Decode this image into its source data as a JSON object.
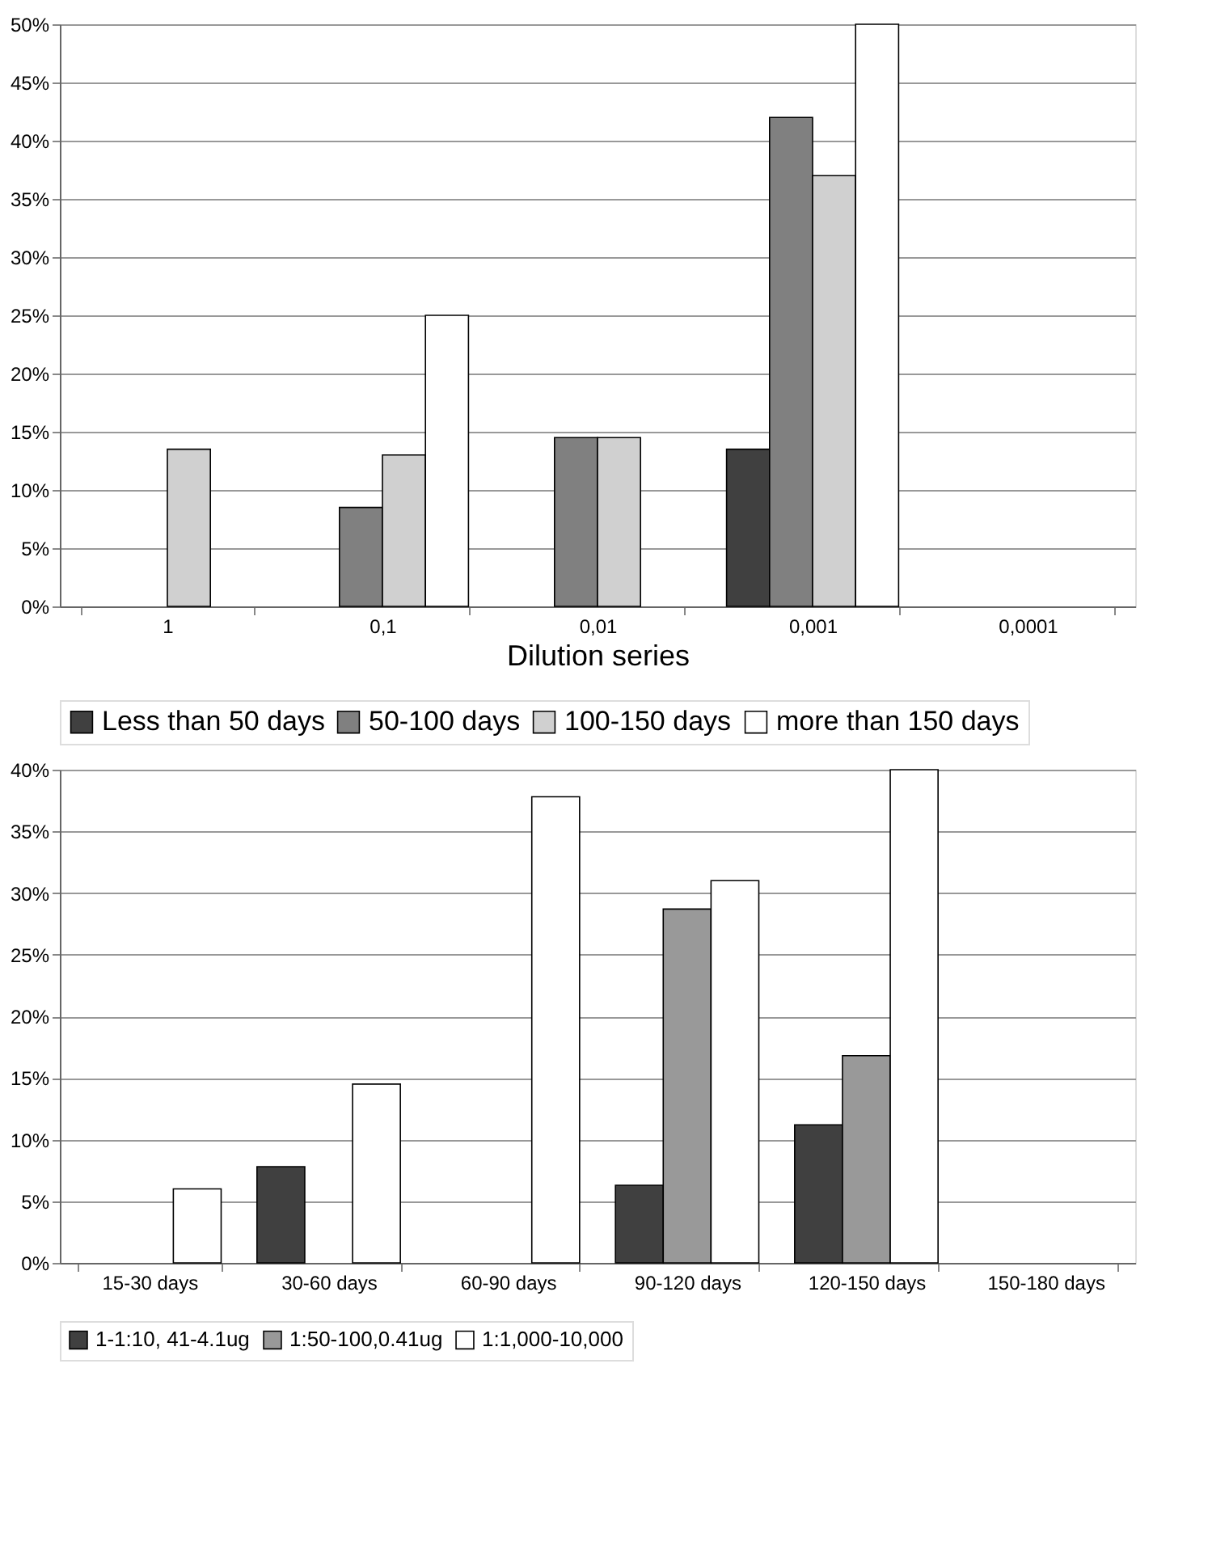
{
  "chart_data": [
    {
      "type": "bar",
      "xlabel": "Dilution series",
      "categories": [
        "1",
        "0,1",
        "0,01",
        "0,001",
        "0,0001"
      ],
      "ylim": [
        0,
        50
      ],
      "yticks": [
        {
          "value": 0,
          "label": "0%"
        },
        {
          "value": 5,
          "label": "5%"
        },
        {
          "value": 10,
          "label": "10%"
        },
        {
          "value": 15,
          "label": "15%"
        },
        {
          "value": 20,
          "label": "20%"
        },
        {
          "value": 25,
          "label": "25%"
        },
        {
          "value": 30,
          "label": "30%"
        },
        {
          "value": 35,
          "label": "35%"
        },
        {
          "value": 40,
          "label": "40%"
        },
        {
          "value": 45,
          "label": "45%"
        },
        {
          "value": 50,
          "label": "50%"
        }
      ],
      "grid": "y",
      "legend": "bottom",
      "series": [
        {
          "name": "Less than 50 days",
          "color": "#404040",
          "values": [
            0,
            0,
            0,
            13.5,
            0
          ]
        },
        {
          "name": "50-100 days",
          "color": "#808080",
          "values": [
            0,
            8.5,
            14.5,
            42,
            0
          ]
        },
        {
          "name": "100-150 days",
          "color": "#d0d0d0",
          "values": [
            13.5,
            13,
            14.5,
            37,
            0
          ]
        },
        {
          "name": "more than 150 days",
          "color": "#ffffff",
          "values": [
            0,
            25,
            0,
            50,
            0
          ]
        }
      ]
    },
    {
      "type": "bar",
      "categories": [
        "15-30 days",
        "30-60 days",
        "60-90 days",
        "90-120 days",
        "120-150  days",
        "150-180 days"
      ],
      "ylim": [
        0,
        40
      ],
      "yticks": [
        {
          "value": 0,
          "label": "0%"
        },
        {
          "value": 5,
          "label": "5%"
        },
        {
          "value": 10,
          "label": "10%"
        },
        {
          "value": 15,
          "label": "15%"
        },
        {
          "value": 20,
          "label": "20%"
        },
        {
          "value": 25,
          "label": "25%"
        },
        {
          "value": 30,
          "label": "30%"
        },
        {
          "value": 35,
          "label": "35%"
        },
        {
          "value": 40,
          "label": "40%"
        }
      ],
      "grid": "y",
      "legend": "bottom",
      "series": [
        {
          "name": "1-1:10, 41-4.1ug",
          "color": "#404040",
          "values": [
            0,
            7.8,
            0,
            6.3,
            11.2,
            0
          ]
        },
        {
          "name": "1:50-100,0.41ug",
          "color": "#999999",
          "values": [
            0,
            0,
            0,
            28.7,
            16.8,
            0
          ]
        },
        {
          "name": "1:1,000-10,000",
          "color": "#ffffff",
          "values": [
            6,
            14.5,
            37.8,
            31,
            40,
            0
          ]
        }
      ]
    }
  ]
}
